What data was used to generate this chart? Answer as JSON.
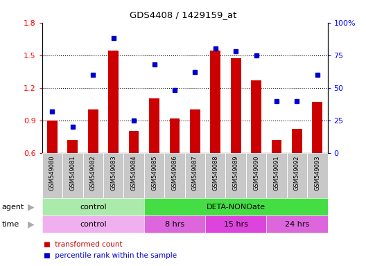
{
  "title": "GDS4408 / 1429159_at",
  "samples": [
    "GSM549080",
    "GSM549081",
    "GSM549082",
    "GSM549083",
    "GSM549084",
    "GSM549085",
    "GSM549086",
    "GSM549087",
    "GSM549088",
    "GSM549089",
    "GSM549090",
    "GSM549091",
    "GSM549092",
    "GSM549093"
  ],
  "transformed_count": [
    0.9,
    0.72,
    1.0,
    1.54,
    0.8,
    1.1,
    0.92,
    1.0,
    1.54,
    1.47,
    1.27,
    0.72,
    0.82,
    1.07
  ],
  "percentile_rank": [
    32,
    20,
    60,
    88,
    25,
    68,
    48,
    62,
    80,
    78,
    75,
    40,
    40,
    60
  ],
  "ylim_left": [
    0.6,
    1.8
  ],
  "ylim_right": [
    0,
    100
  ],
  "yticks_left": [
    0.6,
    0.9,
    1.2,
    1.5,
    1.8
  ],
  "yticks_right": [
    0,
    25,
    50,
    75,
    100
  ],
  "bar_color": "#cc0000",
  "dot_color": "#0000cc",
  "bg_xticklabel": "#c8c8c8",
  "agent_control_color": "#aaeaaa",
  "agent_deta_color": "#44dd44",
  "time_control_color": "#f0b0f0",
  "time_hrs_color": "#dd66dd",
  "n_control": 5,
  "n_8hrs": 3,
  "n_15hrs": 3,
  "n_24hrs": 3,
  "legend_bar_label": "transformed count",
  "legend_dot_label": "percentile rank within the sample"
}
